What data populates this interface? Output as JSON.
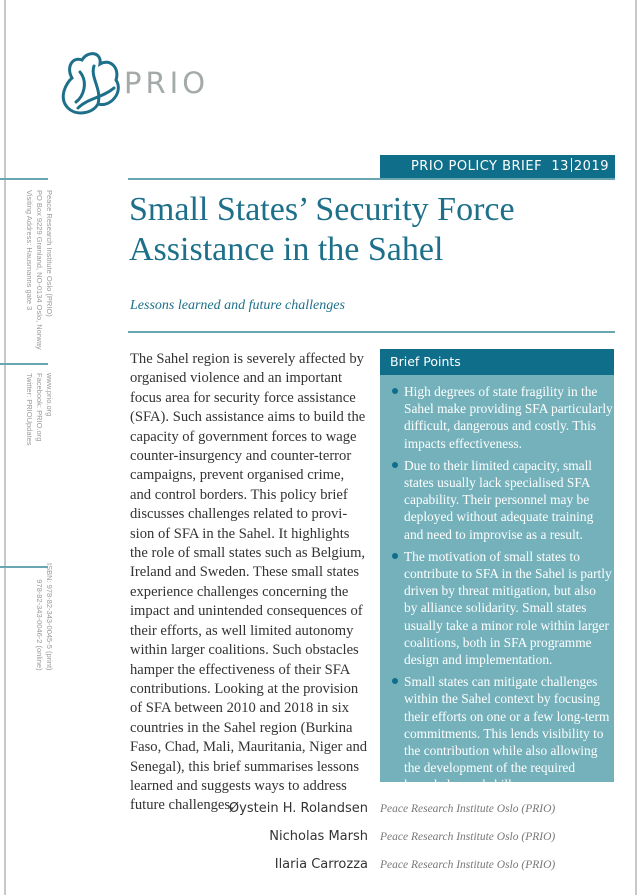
{
  "logo": {
    "text": "PRIO",
    "color": "#1d6f8a"
  },
  "banner": {
    "series": "PRIO POLICY BRIEF",
    "number": "13",
    "year": "2019",
    "color": "#0f6f8b"
  },
  "sidebar": {
    "address": [
      "Peace Research Institute Oslo (PRIO)",
      "PO Box 9229 Grønland, NO-0134 Oslo, Norway",
      "Visiting Address: Hausmanns gate 3"
    ],
    "web": [
      "www.prio.org",
      "Facebook: PRIO.org",
      "Twitter: PRIOUpdates"
    ],
    "isbn": [
      "ISBN: 978-82-343-0045-5 (print)",
      "978-82-343-0046-2 (online)"
    ]
  },
  "title": [
    "Small States’ Security Force",
    "Assistance in the Sahel"
  ],
  "subtitle": "Lessons learned and future challenges",
  "body": [
    "The Sahel region is severely affected by",
    "organised violence and an important",
    "focus area for security force assistance",
    "(SFA). Such assistance aims to build the",
    "capacity of government forces to wage",
    "counter-insurgency and counter-terror",
    "campaigns, prevent organised crime,",
    "and control borders. This policy brief",
    "discusses challenges related to provi-",
    "sion of SFA in the Sahel. It highlights",
    "the role of small states such as Belgium,",
    "Ireland and Sweden. These small states",
    "experience challenges concerning the",
    "impact and unintended consequences of",
    "their efforts, as well limited autonomy",
    "within larger coalitions. Such obstacles",
    "hamper the effectiveness of their SFA",
    "contributions. Looking at the provision",
    "of SFA between 2010 and 2018 in six",
    "countries in the Sahel region (Burkina",
    "Faso, Chad, Mali, Mauritania, Niger and",
    "Senegal), this brief summarises lessons",
    "learned and suggests ways to address",
    "future challenges."
  ],
  "brief_points": {
    "heading": "Brief Points",
    "items": [
      [
        "High degrees of state fragility in the",
        "Sahel make providing SFA particularly",
        "difficult, dangerous and costly. This",
        "impacts effectiveness."
      ],
      [
        "Due to their limited capacity, small",
        "states usually lack specialised SFA",
        "capability. Their personnel may be",
        "deployed without adequate training",
        "and need to improvise as a result."
      ],
      [
        "The motivation of small states to",
        "contribute to SFA in the Sahel is partly",
        "driven by threat mitigation, but also",
        "by alliance solidarity. Small states",
        "usually take a minor role within larger",
        "coalitions, both in SFA programme",
        "design and implementation."
      ],
      [
        "Small states can mitigate challenges",
        "within the Sahel context by focusing",
        "their efforts on one or a few long-term",
        "commitments. This lends visibility to",
        "the contribution while also allowing",
        "the development of the required",
        "knowledge and skills."
      ]
    ]
  },
  "authors": [
    {
      "name": "Øystein H. Rolandsen",
      "affiliation": "Peace Research Institute Oslo (PRIO)"
    },
    {
      "name": "Nicholas Marsh",
      "affiliation": "Peace Research Institute Oslo (PRIO)"
    },
    {
      "name": "Ilaria Carrozza",
      "affiliation": "Peace Research Institute Oslo (PRIO)"
    }
  ]
}
